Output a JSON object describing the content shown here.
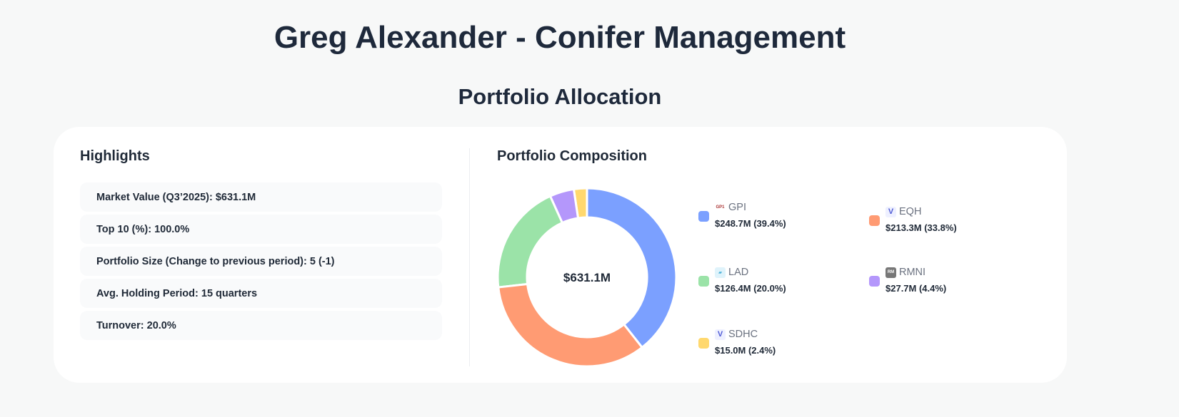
{
  "page_title": "Greg Alexander - Conifer Management",
  "section_title": "Portfolio Allocation",
  "highlights": {
    "title": "Highlights",
    "items": [
      "Market Value (Q3’2025): $631.1M",
      "Top 10 (%): 100.0%",
      "Portfolio Size (Change to previous period): 5 (-1)",
      "Avg. Holding Period: 15 quarters",
      "Turnover: 20.0%"
    ]
  },
  "chart_data": {
    "type": "pie",
    "title": "Portfolio Composition",
    "center_label": "$631.1M",
    "legend_placement": "right",
    "slices": [
      {
        "ticker": "GPI",
        "value": 248.7,
        "percent": 39.4,
        "label": "$248.7M (39.4%)",
        "color": "#7ba0ff",
        "icon": "gpi-logo-icon"
      },
      {
        "ticker": "EQH",
        "value": 213.3,
        "percent": 33.8,
        "label": "$213.3M (33.8%)",
        "color": "#ff9b73",
        "icon": "eqh-logo-icon"
      },
      {
        "ticker": "LAD",
        "value": 126.4,
        "percent": 20.0,
        "label": "$126.4M (20.0%)",
        "color": "#9be3a8",
        "icon": "lad-logo-icon"
      },
      {
        "ticker": "RMNI",
        "value": 27.7,
        "percent": 4.4,
        "label": "$27.7M (4.4%)",
        "color": "#b497fb",
        "icon": "rmni-logo-icon"
      },
      {
        "ticker": "SDHC",
        "value": 15.0,
        "percent": 2.4,
        "label": "$15.0M (2.4%)",
        "color": "#ffd86e",
        "icon": "sdhc-logo-icon"
      }
    ]
  }
}
